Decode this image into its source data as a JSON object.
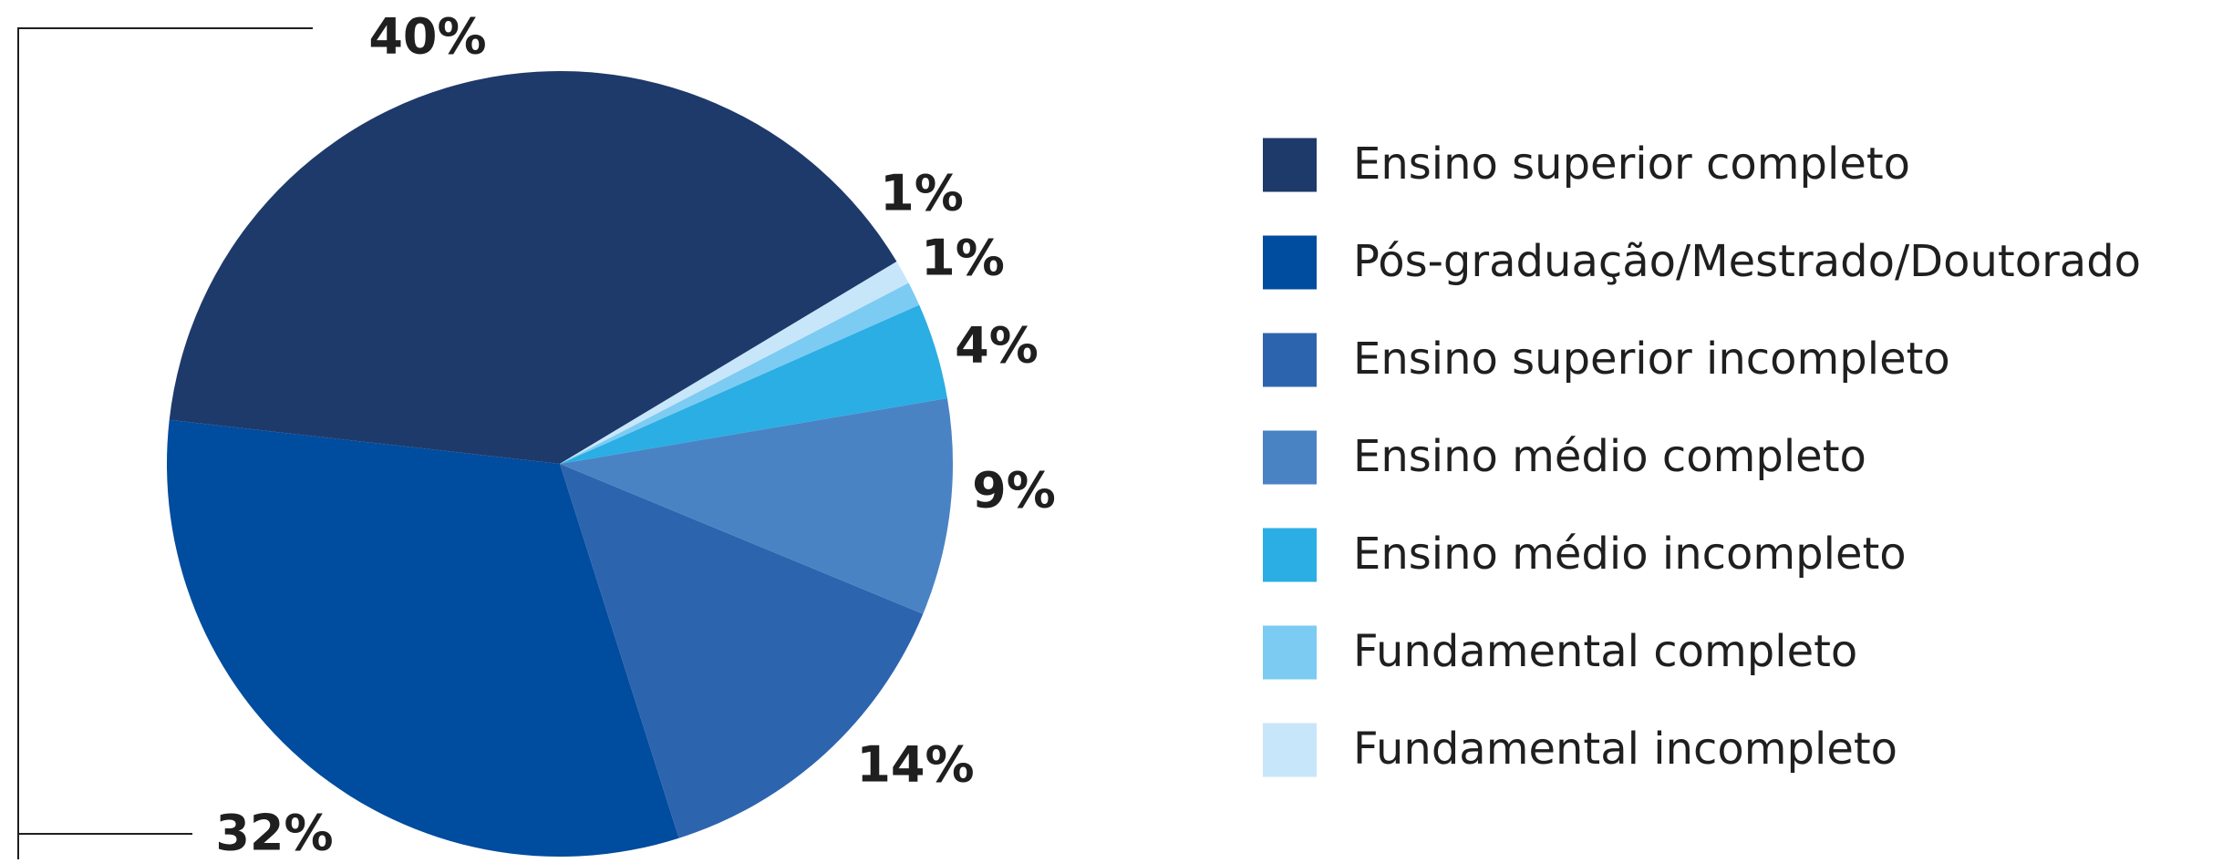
{
  "chart_data": {
    "type": "pie",
    "categories": [
      "Ensino superior completo",
      "Pós-graduação/Mestrado/Doutorado",
      "Ensino superior incompleto",
      "Ensino médio completo",
      "Ensino médio incompleto",
      "Fundamental completo",
      "Fundamental incompleto"
    ],
    "values": [
      40,
      32,
      14,
      9,
      4,
      1,
      1
    ],
    "value_labels": [
      "40%",
      "32%",
      "14%",
      "9%",
      "4%",
      "1%",
      "1%"
    ],
    "colors": [
      "#1e3a6b",
      "#004c9e",
      "#2d64ae",
      "#4a83c4",
      "#2aaee4",
      "#7ccbf2",
      "#c8e6fa"
    ],
    "legend": "right"
  }
}
